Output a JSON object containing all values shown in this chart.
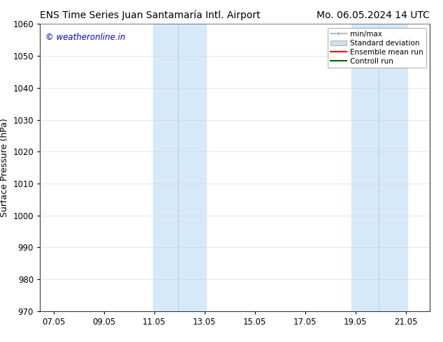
{
  "title_left": "ENS Time Series Juan Santamaría Intl. Airport",
  "title_right": "Mo. 06.05.2024 14 UTC",
  "ylabel": "Surface Pressure (hPa)",
  "watermark": "© weatheronline.in",
  "watermark_color": "#0000cc",
  "xlim_min": 6.5,
  "xlim_max": 22.0,
  "ylim_min": 970,
  "ylim_max": 1060,
  "xticks": [
    7.05,
    9.05,
    11.05,
    13.05,
    15.05,
    17.05,
    19.05,
    21.05
  ],
  "xtick_labels": [
    "07.05",
    "09.05",
    "11.05",
    "13.05",
    "15.05",
    "17.05",
    "19.05",
    "21.05"
  ],
  "yticks": [
    970,
    980,
    990,
    1000,
    1010,
    1020,
    1030,
    1040,
    1050,
    1060
  ],
  "background_color": "#ffffff",
  "plot_background_color": "#ffffff",
  "shaded_block1_xmin": 11.0,
  "shaded_block1_xmid": 12.0,
  "shaded_block1_xmax": 13.1,
  "shaded_block2_xmin": 18.9,
  "shaded_block2_xmid": 19.97,
  "shaded_block2_xmax": 21.1,
  "shaded_color": "#d6e9f8",
  "divider_color": "#b8d4e8",
  "legend_items": [
    {
      "label": "min/max",
      "color": "#aaaaaa",
      "lw": 1.2,
      "ls": "-"
    },
    {
      "label": "Standard deviation",
      "color": "#cce0f0",
      "lw": 6,
      "ls": "-"
    },
    {
      "label": "Ensemble mean run",
      "color": "#ff0000",
      "lw": 1.5,
      "ls": "-"
    },
    {
      "label": "Controll run",
      "color": "#006600",
      "lw": 1.5,
      "ls": "-"
    }
  ],
  "grid_color": "#cccccc",
  "grid_alpha": 0.5,
  "title_fontsize": 10,
  "tick_fontsize": 8.5,
  "ylabel_fontsize": 9,
  "legend_fontsize": 7.5,
  "watermark_fontsize": 8.5
}
